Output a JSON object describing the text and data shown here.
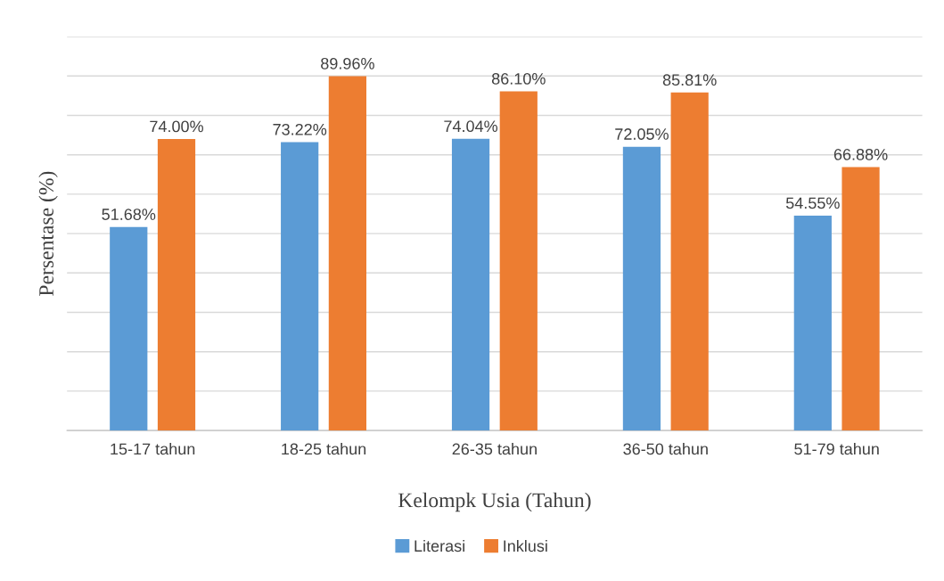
{
  "chart_data": {
    "type": "bar",
    "xlabel": "Kelompk Usia (Tahun)",
    "ylabel": "Persentase (%)",
    "categories": [
      "15-17 tahun",
      "18-25 tahun",
      "26-35 tahun",
      "36-50 tahun",
      "51-79 tahun"
    ],
    "series": [
      {
        "name": "Literasi",
        "color": "#5b9bd5",
        "values": [
          51.68,
          73.22,
          74.04,
          72.05,
          54.55
        ],
        "value_labels": [
          "51.68%",
          "73.22%",
          "74.04%",
          "72.05%",
          "54.55%"
        ]
      },
      {
        "name": "Inklusi",
        "color": "#ed7d31",
        "values": [
          74.0,
          89.96,
          86.1,
          85.81,
          66.88
        ],
        "value_labels": [
          "74.00%",
          "89.96%",
          "86.10%",
          "85.81%",
          "66.88%"
        ]
      }
    ],
    "ylim": [
      0,
      100
    ],
    "yticks": [
      {
        "value": 0,
        "label": null
      },
      {
        "value": 10,
        "label": null
      },
      {
        "value": 20,
        "label": null
      },
      {
        "value": 30,
        "label": null
      },
      {
        "value": 40,
        "label": null
      },
      {
        "value": 50,
        "label": null
      },
      {
        "value": 60,
        "label": null
      },
      {
        "value": 70,
        "label": null
      },
      {
        "value": 80,
        "label": null
      },
      {
        "value": 90,
        "label": null
      },
      {
        "value": 100,
        "label": null
      }
    ],
    "tick_labels": "x",
    "grid": "y",
    "legend": "bottom"
  }
}
